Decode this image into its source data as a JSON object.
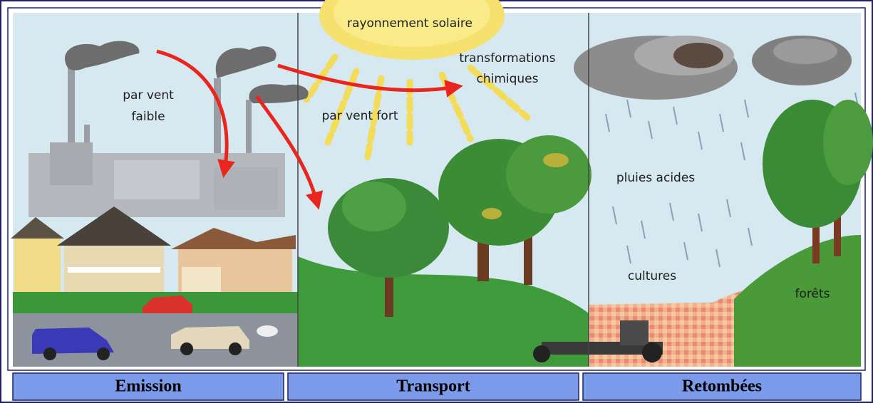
{
  "illustration": {
    "labels": {
      "sun": "rayonnement solaire",
      "chemistry": [
        "transformations",
        "chimiques"
      ],
      "weak_wind": [
        "par vent",
        "faible"
      ],
      "strong_wind": "par vent fort",
      "acid_rain": "pluies acides",
      "crops": "cultures",
      "forests": "forêts"
    }
  },
  "table": {
    "cells": [
      "Emission",
      "Transport",
      "Retombées"
    ]
  }
}
